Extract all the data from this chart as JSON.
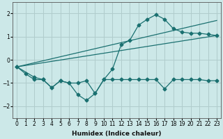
{
  "background_color": "#cce8e8",
  "grid_color": "#b0cccc",
  "line_color": "#1a7070",
  "xlabel": "Humidex (Indice chaleur)",
  "xlim": [
    -0.5,
    23.5
  ],
  "ylim": [
    -2.5,
    2.5
  ],
  "yticks": [
    -2,
    -1,
    0,
    1,
    2
  ],
  "xticks": [
    0,
    1,
    2,
    3,
    4,
    5,
    6,
    7,
    8,
    9,
    10,
    11,
    12,
    13,
    14,
    15,
    16,
    17,
    18,
    19,
    20,
    21,
    22,
    23
  ],
  "line1_x": [
    0,
    1,
    2,
    3,
    4,
    5,
    6,
    7,
    8,
    9,
    10,
    11,
    12,
    13,
    14,
    15,
    16,
    17,
    18,
    19,
    20,
    21,
    22,
    23
  ],
  "line1_y": [
    -0.3,
    -0.6,
    -0.85,
    -0.85,
    -1.2,
    -0.9,
    -1.0,
    -1.5,
    -1.75,
    -1.45,
    -0.85,
    -0.4,
    0.65,
    0.85,
    1.5,
    1.75,
    1.95,
    1.75,
    1.35,
    1.2,
    1.15,
    1.15,
    1.1,
    1.05
  ],
  "line2_x": [
    0,
    2,
    3,
    4,
    5,
    6,
    7,
    8,
    9,
    10,
    11,
    12,
    13,
    14,
    15,
    16,
    17,
    18,
    19,
    20,
    21,
    22,
    23
  ],
  "line2_y": [
    -0.3,
    -0.75,
    -0.85,
    -1.2,
    -0.9,
    -1.0,
    -1.0,
    -0.9,
    -1.45,
    -0.85,
    -0.85,
    -0.85,
    -0.85,
    -0.85,
    -0.85,
    -0.85,
    -1.25,
    -0.85,
    -0.85,
    -0.85,
    -0.85,
    -0.9,
    -0.9
  ],
  "line3_x": [
    0,
    23
  ],
  "line3_y": [
    -0.3,
    1.05
  ],
  "line4_x": [
    0,
    23
  ],
  "line4_y": [
    -0.3,
    1.7
  ]
}
